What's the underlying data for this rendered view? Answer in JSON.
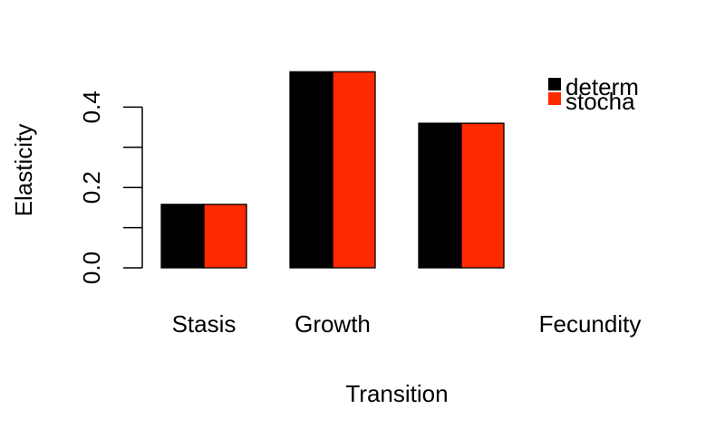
{
  "chart_data": {
    "type": "bar",
    "categories": [
      "Stasis",
      "Growth",
      "",
      "Fecundity"
    ],
    "series": [
      {
        "name": "determ",
        "values": [
          0.158,
          0.488,
          0.36,
          0.0
        ]
      },
      {
        "name": "stocha",
        "values": [
          0.158,
          0.488,
          0.36,
          0.0
        ]
      }
    ],
    "xlabel": "Transition",
    "ylabel": "Elasticity",
    "ylim": [
      0,
      0.5
    ],
    "yticks": [
      "0.0",
      "0.2",
      "0.4"
    ],
    "ytick_values": [
      0.0,
      0.2,
      0.4
    ],
    "minor_ticks": [
      0.1,
      0.3
    ],
    "grid": false,
    "legend_position": "top-right",
    "colors": {
      "determ": "#000000",
      "stocha": "#ff2a00"
    }
  }
}
